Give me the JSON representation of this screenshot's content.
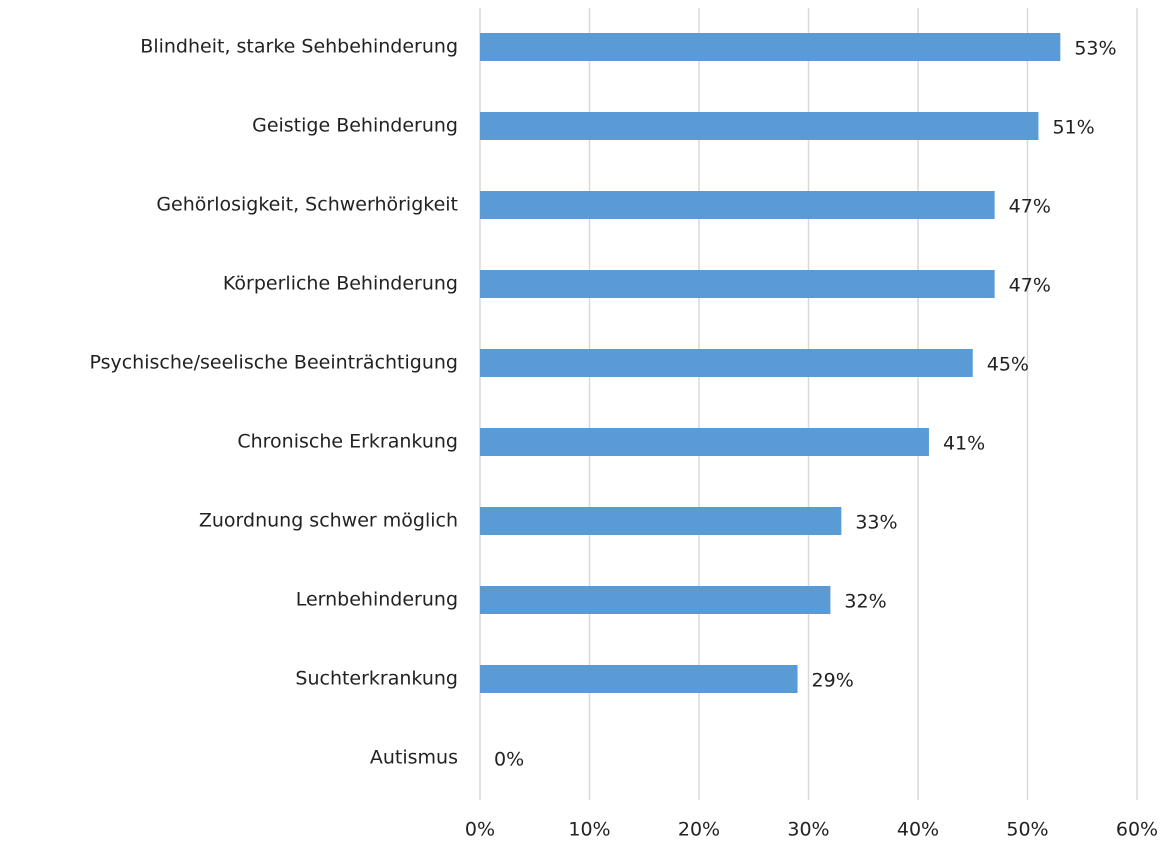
{
  "chart_data": {
    "type": "hbar",
    "categories": [
      "Blindheit, starke Sehbehinderung",
      "Geistige Behinderung",
      "Gehörlosigkeit, Schwerhörigkeit",
      "Körperliche Behinderung",
      "Psychische/seelische Beeinträchtigung",
      "Chronische Erkrankung",
      "Zuordnung schwer möglich",
      "Lernbehinderung",
      "Suchterkrankung",
      "Autismus"
    ],
    "values": [
      53,
      51,
      47,
      47,
      45,
      41,
      33,
      32,
      29,
      0
    ],
    "value_labels": [
      "53%",
      "51%",
      "47%",
      "47%",
      "45%",
      "41%",
      "33%",
      "32%",
      "29%",
      "0%"
    ],
    "color": "#5b9bd5",
    "xlim": [
      0,
      60
    ],
    "xticks": [
      {
        "value": 0,
        "label": "0%"
      },
      {
        "value": 10,
        "label": "10%"
      },
      {
        "value": 20,
        "label": "20%"
      },
      {
        "value": 30,
        "label": "30%"
      },
      {
        "value": 40,
        "label": "40%"
      },
      {
        "value": 50,
        "label": "50%"
      },
      {
        "value": 60,
        "label": "60%"
      }
    ],
    "grid": true
  }
}
